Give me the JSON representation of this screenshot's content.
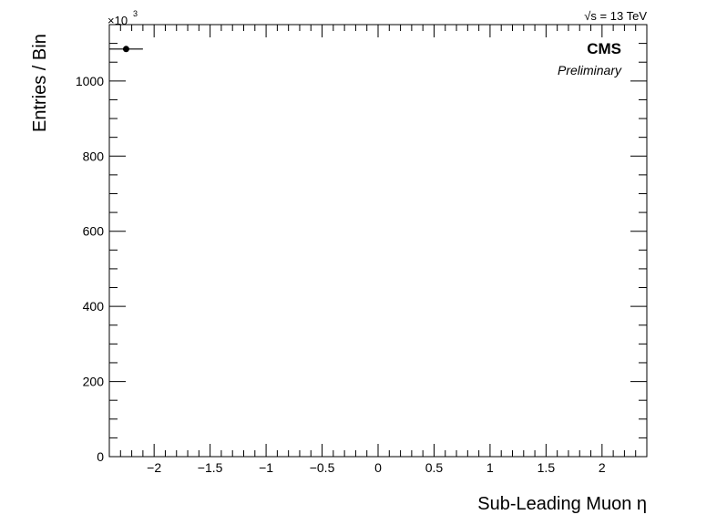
{
  "chart_data": {
    "type": "scatter",
    "title": "",
    "xlabel": "Sub-Leading Muon η",
    "ylabel": "Entries / Bin",
    "x_range": [
      -2.4,
      2.4
    ],
    "y_range": [
      0,
      1150
    ],
    "y_multiplier_label": "×10",
    "y_multiplier_exponent": "3",
    "energy_label": "√s = 13 TeV",
    "experiment_label": "CMS",
    "status_label": "Preliminary",
    "x_ticks": [
      -2,
      -1.5,
      -1,
      -0.5,
      0,
      0.5,
      1,
      1.5,
      2
    ],
    "x_tick_labels": [
      "−2",
      "−1.5",
      "−1",
      "−0.5",
      "0",
      "0.5",
      "1",
      "1.5",
      "2"
    ],
    "y_ticks": [
      0,
      200,
      400,
      600,
      800,
      1000
    ],
    "y_tick_labels": [
      "0",
      "200",
      "400",
      "600",
      "800",
      "1000"
    ],
    "grid": false,
    "points": [
      {
        "x": -2.25,
        "x_low": -2.4,
        "x_high": -2.1,
        "y": 1085
      }
    ]
  }
}
